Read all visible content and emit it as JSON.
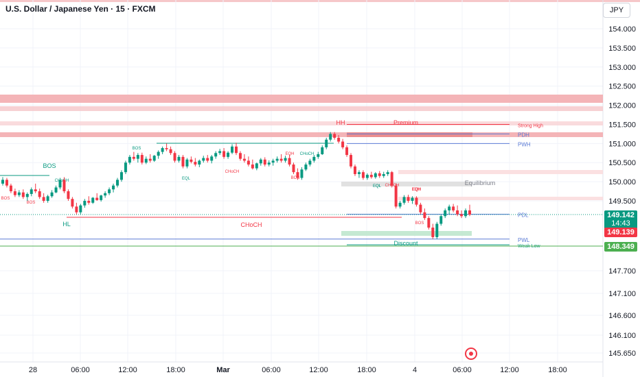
{
  "header": {
    "title": "U.S. Dollar / Japanese Yen · 15 · FXCM",
    "currency": "JPY"
  },
  "price_tags": {
    "last_price": "149.142",
    "countdown": "14:43",
    "bid": "149.139",
    "weak_low": "148.349"
  },
  "chart_data": {
    "type": "candlestick",
    "symbol": "USDJPY",
    "y_axis_ticks": [
      "154.000",
      "153.500",
      "153.000",
      "152.500",
      "152.000",
      "151.500",
      "151.000",
      "150.500",
      "150.000",
      "149.500",
      "147.700",
      "147.100",
      "146.600",
      "146.100",
      "145.650"
    ],
    "x_axis_ticks": [
      "28",
      "06:00",
      "12:00",
      "18:00",
      "Mar",
      "06:00",
      "12:00",
      "18:00",
      "4",
      "06:00",
      "12:00",
      "18:00"
    ],
    "zones": [
      {
        "label": "Premium",
        "side": "supply"
      },
      {
        "label": "Equilibrium",
        "side": "mid"
      },
      {
        "label": "Discount",
        "side": "demand"
      }
    ],
    "levels": [
      {
        "label": "PDH",
        "value": 151.25,
        "color": "#5b7bd5"
      },
      {
        "label": "PWH",
        "value": 151.0,
        "color": "#5b7bd5"
      },
      {
        "label": "PDL",
        "value": 149.15,
        "color": "#5b7bd5"
      },
      {
        "label": "PWL",
        "value": 148.5,
        "color": "#5b7bd5"
      },
      {
        "label": "Strong High",
        "value": 151.5,
        "color": "#f23645"
      },
      {
        "label": "Weak Low",
        "value": 148.35,
        "color": "#089981"
      }
    ],
    "structure_labels": [
      {
        "text": "BOS",
        "color": "#089981"
      },
      {
        "text": "HL",
        "color": "#089981"
      },
      {
        "text": "CHoCH",
        "color": "#f23645"
      },
      {
        "text": "HH",
        "color": "#f23645"
      },
      {
        "text": "EQH",
        "color": "#f23645"
      },
      {
        "text": "EQL",
        "color": "#089981"
      }
    ],
    "small_labels": [
      "BOS",
      "BOS",
      "CHoCH",
      "BOS",
      "EQL",
      "CHoCH",
      "EQH",
      "CHoCH",
      "BOS",
      "EQL",
      "CHoCH",
      "EQH",
      "BOS"
    ],
    "candles": [
      [
        149.95,
        150.12,
        149.9,
        150.05
      ],
      [
        150.05,
        150.1,
        149.85,
        149.9
      ],
      [
        149.9,
        149.95,
        149.7,
        149.75
      ],
      [
        149.75,
        149.82,
        149.6,
        149.65
      ],
      [
        149.65,
        149.78,
        149.6,
        149.72
      ],
      [
        149.72,
        149.8,
        149.55,
        149.6
      ],
      [
        149.6,
        149.72,
        149.5,
        149.68
      ],
      [
        149.68,
        149.85,
        149.62,
        149.8
      ],
      [
        149.8,
        149.95,
        149.7,
        149.75
      ],
      [
        149.75,
        149.82,
        149.55,
        149.6
      ],
      [
        149.6,
        149.7,
        149.45,
        149.5
      ],
      [
        149.5,
        149.66,
        149.45,
        149.62
      ],
      [
        149.62,
        149.78,
        149.58,
        149.72
      ],
      [
        149.72,
        149.9,
        149.7,
        149.85
      ],
      [
        149.85,
        150.1,
        149.8,
        150.05
      ],
      [
        150.05,
        150.12,
        149.7,
        149.75
      ],
      [
        149.75,
        149.8,
        149.5,
        149.55
      ],
      [
        149.55,
        149.6,
        149.3,
        149.35
      ],
      [
        149.35,
        149.45,
        149.15,
        149.2
      ],
      [
        149.2,
        149.42,
        149.15,
        149.38
      ],
      [
        149.38,
        149.55,
        149.32,
        149.5
      ],
      [
        149.5,
        149.62,
        149.4,
        149.45
      ],
      [
        149.45,
        149.6,
        149.42,
        149.58
      ],
      [
        149.58,
        149.7,
        149.5,
        149.52
      ],
      [
        149.52,
        149.66,
        149.48,
        149.64
      ],
      [
        149.64,
        149.75,
        149.58,
        149.7
      ],
      [
        149.7,
        149.85,
        149.65,
        149.8
      ],
      [
        149.8,
        149.95,
        149.72,
        149.9
      ],
      [
        149.9,
        150.1,
        149.85,
        150.05
      ],
      [
        150.05,
        150.3,
        150.0,
        150.25
      ],
      [
        150.25,
        150.55,
        150.2,
        150.5
      ],
      [
        150.5,
        150.7,
        150.45,
        150.65
      ],
      [
        150.65,
        150.78,
        150.55,
        150.6
      ],
      [
        150.6,
        150.75,
        150.5,
        150.7
      ],
      [
        150.7,
        150.76,
        150.45,
        150.5
      ],
      [
        150.5,
        150.66,
        150.46,
        150.6
      ],
      [
        150.6,
        150.72,
        150.5,
        150.55
      ],
      [
        150.55,
        150.7,
        150.52,
        150.68
      ],
      [
        150.68,
        150.82,
        150.6,
        150.78
      ],
      [
        150.78,
        150.92,
        150.72,
        150.88
      ],
      [
        150.88,
        151.0,
        150.8,
        150.85
      ],
      [
        150.85,
        150.92,
        150.7,
        150.75
      ],
      [
        150.75,
        150.8,
        150.5,
        150.55
      ],
      [
        150.55,
        150.7,
        150.5,
        150.65
      ],
      [
        150.65,
        150.7,
        150.35,
        150.4
      ],
      [
        150.4,
        150.62,
        150.35,
        150.58
      ],
      [
        150.58,
        150.66,
        150.48,
        150.52
      ],
      [
        150.52,
        150.62,
        150.4,
        150.45
      ],
      [
        150.45,
        150.58,
        150.38,
        150.55
      ],
      [
        150.55,
        150.68,
        150.5,
        150.62
      ],
      [
        150.62,
        150.7,
        150.5,
        150.55
      ],
      [
        150.55,
        150.7,
        150.48,
        150.66
      ],
      [
        150.66,
        150.8,
        150.6,
        150.75
      ],
      [
        150.75,
        150.86,
        150.7,
        150.8
      ],
      [
        150.8,
        150.88,
        150.6,
        150.65
      ],
      [
        150.65,
        150.8,
        150.6,
        150.76
      ],
      [
        150.76,
        150.98,
        150.72,
        150.92
      ],
      [
        150.92,
        151.02,
        150.7,
        150.75
      ],
      [
        150.75,
        150.8,
        150.55,
        150.6
      ],
      [
        150.6,
        150.72,
        150.5,
        150.55
      ],
      [
        150.55,
        150.66,
        150.4,
        150.45
      ],
      [
        150.45,
        150.58,
        150.32,
        150.35
      ],
      [
        150.35,
        150.5,
        150.3,
        150.48
      ],
      [
        150.48,
        150.62,
        150.42,
        150.58
      ],
      [
        150.58,
        150.64,
        150.4,
        150.45
      ],
      [
        150.45,
        150.56,
        150.4,
        150.5
      ],
      [
        150.5,
        150.6,
        150.42,
        150.55
      ],
      [
        150.55,
        150.66,
        150.5,
        150.6
      ],
      [
        150.6,
        150.72,
        150.5,
        150.55
      ],
      [
        150.55,
        150.68,
        150.5,
        150.62
      ],
      [
        150.62,
        150.7,
        150.4,
        150.45
      ],
      [
        150.45,
        150.5,
        150.2,
        150.25
      ],
      [
        150.25,
        150.35,
        150.05,
        150.1
      ],
      [
        150.1,
        150.38,
        150.05,
        150.32
      ],
      [
        150.32,
        150.5,
        150.28,
        150.45
      ],
      [
        150.45,
        150.6,
        150.4,
        150.55
      ],
      [
        150.55,
        150.7,
        150.5,
        150.65
      ],
      [
        150.65,
        150.78,
        150.6,
        150.72
      ],
      [
        150.72,
        150.95,
        150.7,
        150.9
      ],
      [
        150.9,
        151.15,
        150.85,
        151.1
      ],
      [
        151.1,
        151.3,
        151.05,
        151.25
      ],
      [
        151.25,
        151.3,
        151.1,
        151.15
      ],
      [
        151.15,
        151.22,
        151.0,
        151.05
      ],
      [
        151.05,
        151.12,
        150.85,
        150.9
      ],
      [
        150.9,
        150.95,
        150.65,
        150.7
      ],
      [
        150.7,
        150.75,
        150.35,
        150.4
      ],
      [
        150.4,
        150.45,
        150.15,
        150.2
      ],
      [
        150.2,
        150.3,
        150.1,
        150.25
      ],
      [
        150.25,
        150.3,
        150.05,
        150.1
      ],
      [
        150.1,
        150.22,
        150.05,
        150.18
      ],
      [
        150.18,
        150.26,
        150.08,
        150.12
      ],
      [
        150.12,
        150.25,
        150.08,
        150.22
      ],
      [
        150.22,
        150.28,
        150.1,
        150.15
      ],
      [
        150.15,
        150.26,
        150.1,
        150.2
      ],
      [
        150.2,
        150.3,
        150.15,
        150.25
      ],
      [
        150.25,
        150.28,
        149.85,
        149.9
      ],
      [
        149.9,
        149.95,
        149.3,
        149.35
      ],
      [
        149.35,
        149.5,
        149.3,
        149.45
      ],
      [
        149.45,
        149.65,
        149.4,
        149.6
      ],
      [
        149.6,
        149.66,
        149.45,
        149.5
      ],
      [
        149.5,
        149.62,
        149.42,
        149.58
      ],
      [
        149.58,
        149.62,
        149.35,
        149.4
      ],
      [
        149.4,
        149.45,
        149.15,
        149.2
      ],
      [
        149.2,
        149.3,
        149.0,
        149.05
      ],
      [
        149.05,
        149.1,
        148.75,
        148.8
      ],
      [
        148.8,
        148.9,
        148.5,
        148.55
      ],
      [
        148.55,
        148.95,
        148.5,
        148.9
      ],
      [
        148.9,
        149.15,
        148.85,
        149.1
      ],
      [
        149.1,
        149.3,
        149.05,
        149.25
      ],
      [
        149.25,
        149.4,
        149.15,
        149.35
      ],
      [
        149.35,
        149.42,
        149.2,
        149.25
      ],
      [
        149.25,
        149.38,
        149.1,
        149.15
      ],
      [
        149.15,
        149.25,
        149.05,
        149.1
      ],
      [
        149.1,
        149.3,
        149.05,
        149.25
      ],
      [
        149.25,
        149.4,
        149.1,
        149.14
      ]
    ]
  }
}
